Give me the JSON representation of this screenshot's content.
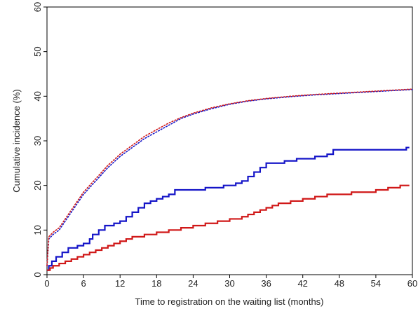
{
  "chart_data": {
    "type": "line",
    "title": "",
    "xlabel": "Time to registration on the waiting list (months)",
    "ylabel": "Cumulative incidence (%)",
    "xlim": [
      0,
      60
    ],
    "ylim": [
      0,
      60
    ],
    "x_ticks": [
      0,
      6,
      12,
      18,
      24,
      30,
      36,
      42,
      48,
      54,
      60
    ],
    "y_ticks": [
      0,
      10,
      20,
      30,
      40,
      50,
      60
    ],
    "grid": false,
    "legend": "none",
    "series": [
      {
        "style": "step",
        "color": "#1515c8",
        "points": [
          [
            0,
            1
          ],
          [
            0.3,
            2
          ],
          [
            0.8,
            3
          ],
          [
            1.5,
            4
          ],
          [
            2.5,
            5
          ],
          [
            3.5,
            6
          ],
          [
            5,
            6.5
          ],
          [
            6,
            7
          ],
          [
            7,
            8
          ],
          [
            7.5,
            9
          ],
          [
            8.5,
            10
          ],
          [
            9.5,
            11
          ],
          [
            11,
            11.5
          ],
          [
            12,
            12
          ],
          [
            13,
            13
          ],
          [
            14,
            14
          ],
          [
            15,
            15
          ],
          [
            16,
            16
          ],
          [
            17,
            16.5
          ],
          [
            18,
            17
          ],
          [
            19,
            17.5
          ],
          [
            20,
            18
          ],
          [
            21,
            19
          ],
          [
            22,
            19
          ],
          [
            24,
            19
          ],
          [
            26,
            19.5
          ],
          [
            29,
            20
          ],
          [
            31,
            20.5
          ],
          [
            32,
            21
          ],
          [
            33,
            22
          ],
          [
            34,
            23
          ],
          [
            35,
            24
          ],
          [
            36,
            25
          ],
          [
            39,
            25.5
          ],
          [
            41,
            26
          ],
          [
            44,
            26.5
          ],
          [
            46,
            27
          ],
          [
            47,
            28
          ],
          [
            50,
            28
          ],
          [
            54,
            28
          ],
          [
            58,
            28
          ],
          [
            59,
            28.5
          ],
          [
            59.5,
            28.5
          ]
        ]
      },
      {
        "style": "step",
        "color": "#d01818",
        "points": [
          [
            0,
            1
          ],
          [
            0.5,
            1.5
          ],
          [
            1,
            2
          ],
          [
            2,
            2.5
          ],
          [
            3,
            3
          ],
          [
            4,
            3.5
          ],
          [
            5,
            4
          ],
          [
            6,
            4.5
          ],
          [
            7,
            5
          ],
          [
            8,
            5.5
          ],
          [
            9,
            6
          ],
          [
            10,
            6.5
          ],
          [
            11,
            7
          ],
          [
            12,
            7.5
          ],
          [
            13,
            8
          ],
          [
            14,
            8.5
          ],
          [
            16,
            9
          ],
          [
            18,
            9.5
          ],
          [
            20,
            10
          ],
          [
            22,
            10.5
          ],
          [
            24,
            11
          ],
          [
            26,
            11.5
          ],
          [
            28,
            12
          ],
          [
            30,
            12.5
          ],
          [
            32,
            13
          ],
          [
            33,
            13.5
          ],
          [
            34,
            14
          ],
          [
            35,
            14.5
          ],
          [
            36,
            15
          ],
          [
            37,
            15.5
          ],
          [
            38,
            16
          ],
          [
            40,
            16.5
          ],
          [
            42,
            17
          ],
          [
            44,
            17.5
          ],
          [
            46,
            18
          ],
          [
            48,
            18
          ],
          [
            50,
            18.5
          ],
          [
            52,
            18.5
          ],
          [
            54,
            19
          ],
          [
            56,
            19.5
          ],
          [
            58,
            20
          ],
          [
            59.5,
            20
          ]
        ]
      },
      {
        "style": "dotted",
        "color": "#1515c8",
        "points": [
          [
            0,
            2
          ],
          [
            0.3,
            8
          ],
          [
            1,
            9
          ],
          [
            2,
            10
          ],
          [
            3,
            12
          ],
          [
            4,
            14
          ],
          [
            5,
            16
          ],
          [
            6,
            18
          ],
          [
            8,
            21
          ],
          [
            10,
            24
          ],
          [
            12,
            26.5
          ],
          [
            14,
            28.5
          ],
          [
            16,
            30.5
          ],
          [
            18,
            32
          ],
          [
            20,
            33.5
          ],
          [
            22,
            35
          ],
          [
            24,
            36
          ],
          [
            27,
            37.2
          ],
          [
            30,
            38.2
          ],
          [
            33,
            38.9
          ],
          [
            36,
            39.4
          ],
          [
            40,
            39.9
          ],
          [
            44,
            40.3
          ],
          [
            48,
            40.6
          ],
          [
            52,
            40.9
          ],
          [
            56,
            41.2
          ],
          [
            60,
            41.5
          ]
        ]
      },
      {
        "style": "dotted",
        "color": "#d01818",
        "points": [
          [
            0,
            2
          ],
          [
            0.3,
            8.5
          ],
          [
            1,
            9.5
          ],
          [
            2,
            10.5
          ],
          [
            3,
            12.5
          ],
          [
            4,
            14.5
          ],
          [
            5,
            16.5
          ],
          [
            6,
            18.5
          ],
          [
            8,
            21.5
          ],
          [
            10,
            24.5
          ],
          [
            12,
            27
          ],
          [
            14,
            29
          ],
          [
            16,
            31
          ],
          [
            18,
            32.5
          ],
          [
            20,
            34
          ],
          [
            22,
            35.2
          ],
          [
            24,
            36.2
          ],
          [
            27,
            37.4
          ],
          [
            30,
            38.3
          ],
          [
            33,
            39
          ],
          [
            36,
            39.5
          ],
          [
            40,
            40
          ],
          [
            44,
            40.4
          ],
          [
            48,
            40.7
          ],
          [
            52,
            41
          ],
          [
            56,
            41.3
          ],
          [
            60,
            41.6
          ]
        ]
      }
    ]
  }
}
